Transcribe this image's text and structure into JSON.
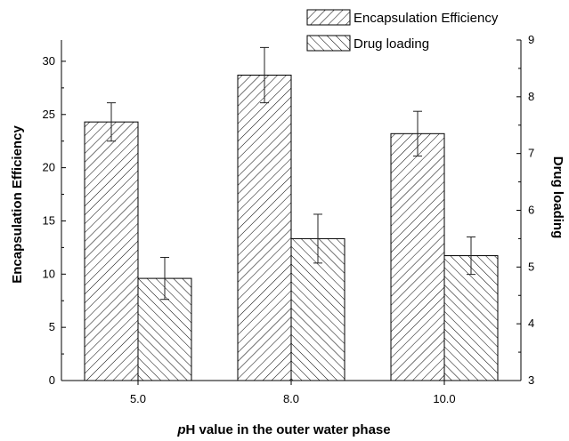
{
  "chart_data": {
    "type": "bar",
    "categories": [
      "5.0",
      "8.0",
      "10.0"
    ],
    "xlabel_italic": "p",
    "xlabel_rest": "H value in the outer water phase",
    "ylabel_left": "Encapsulation Efficiency",
    "ylabel_right": "Drug loading",
    "ylim_left": [
      0,
      32
    ],
    "yticks_left": [
      0,
      5,
      10,
      15,
      20,
      25,
      30
    ],
    "ylim_right": [
      3,
      9
    ],
    "yticks_right": [
      3,
      4,
      5,
      6,
      7,
      8,
      9
    ],
    "legend_position": "top-right",
    "series": [
      {
        "name": "Encapsulation Efficiency",
        "axis": "left",
        "pattern": "forward-diagonal",
        "values": [
          24.3,
          28.7,
          23.2
        ],
        "errors": [
          1.8,
          2.6,
          2.1
        ]
      },
      {
        "name": "Drug loading",
        "axis": "right",
        "pattern": "back-diagonal",
        "values": [
          4.8,
          5.5,
          5.2
        ],
        "errors": [
          0.37,
          0.43,
          0.33
        ]
      }
    ]
  }
}
